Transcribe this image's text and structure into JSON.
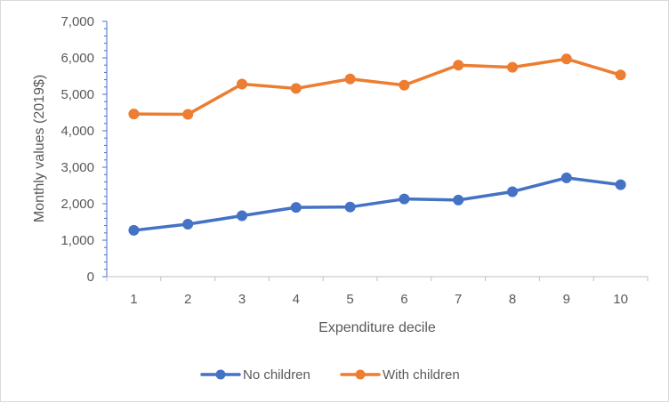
{
  "chart_data": {
    "type": "line",
    "title": "",
    "xlabel": "Expenditure decile",
    "ylabel": "Monthly values (2019$)",
    "categories": [
      "1",
      "2",
      "3",
      "4",
      "5",
      "6",
      "7",
      "8",
      "9",
      "10"
    ],
    "ylim": [
      0,
      7000
    ],
    "yticks": [
      0,
      1000,
      2000,
      3000,
      4000,
      5000,
      6000,
      7000
    ],
    "ytick_labels": [
      "0",
      "1,000",
      "2,000",
      "3,000",
      "4,000",
      "5,000",
      "6,000",
      "7,000"
    ],
    "grid": false,
    "legend_position": "bottom",
    "series": [
      {
        "name": "No children",
        "color": "#4472c4",
        "values": [
          1270,
          1440,
          1670,
          1900,
          1910,
          2130,
          2100,
          2330,
          2710,
          2520
        ]
      },
      {
        "name": "With children",
        "color": "#ed7d31",
        "values": [
          4460,
          4450,
          5280,
          5160,
          5420,
          5250,
          5800,
          5740,
          5970,
          5530
        ]
      }
    ]
  }
}
